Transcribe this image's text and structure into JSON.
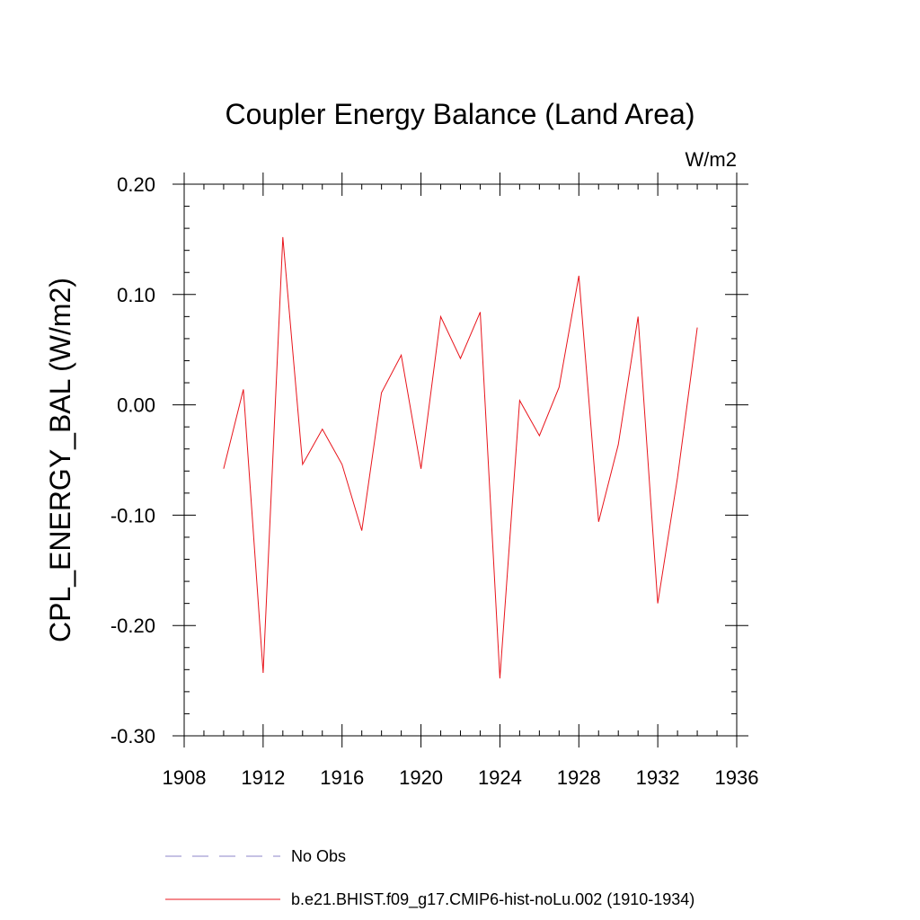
{
  "chart_data": {
    "type": "line",
    "title": "Coupler Energy Balance (Land Area)",
    "units": "W/m2",
    "ylabel": "CPL_ENERGY_BAL  (W/m2)",
    "xlabel": "",
    "xlim": [
      1908,
      1936
    ],
    "ylim": [
      -0.3,
      0.2
    ],
    "x_ticks": [
      "1908",
      "1912",
      "1916",
      "1920",
      "1924",
      "1928",
      "1932",
      "1936"
    ],
    "y_ticks": [
      "-0.30",
      "-0.20",
      "-0.10",
      "0.00",
      "0.10",
      "0.20"
    ],
    "grid": false,
    "legend_position": "bottom",
    "series": [
      {
        "name": "No Obs",
        "color": "#8c84c8",
        "style": "dashed",
        "x": [],
        "values": []
      },
      {
        "name": "b.e21.BHIST.f09_g17.CMIP6-hist-noLu.002 (1910-1934)",
        "color": "#e8141b",
        "style": "solid",
        "x": [
          1910,
          1911,
          1912,
          1913,
          1914,
          1915,
          1916,
          1917,
          1918,
          1919,
          1920,
          1921,
          1922,
          1923,
          1924,
          1925,
          1926,
          1927,
          1928,
          1929,
          1930,
          1931,
          1932,
          1933,
          1934
        ],
        "values": [
          -0.058,
          0.014,
          -0.243,
          0.152,
          -0.054,
          -0.022,
          -0.054,
          -0.114,
          0.011,
          0.045,
          -0.058,
          0.08,
          0.042,
          0.084,
          -0.248,
          0.004,
          -0.028,
          0.016,
          0.117,
          -0.106,
          -0.036,
          0.08,
          -0.18,
          -0.066,
          0.07
        ]
      }
    ]
  }
}
